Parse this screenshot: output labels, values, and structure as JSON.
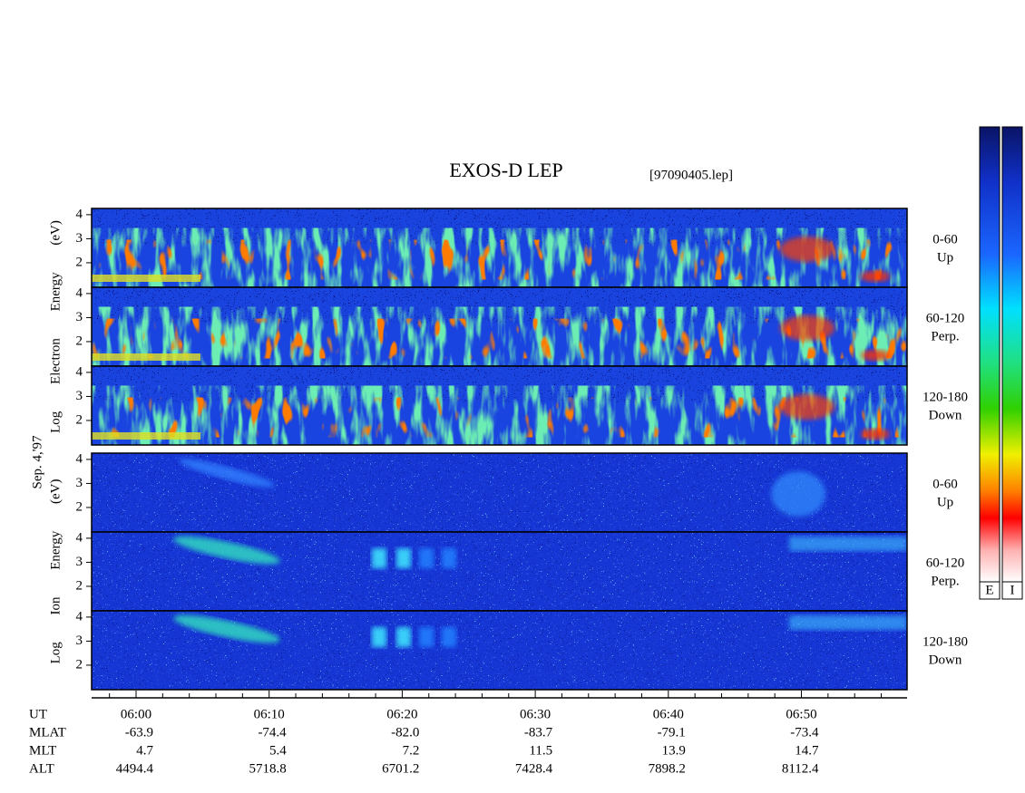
{
  "chart_data": {
    "type": "spectrogram",
    "title": "EXOS-D LEP",
    "file": "[97090405.lep]",
    "date_label": "Sep. 4,'97",
    "groups": [
      {
        "ylabel": "Log Electron Energy (eV)",
        "panels": [
          {
            "pitch": "0-60",
            "dir": "Up"
          },
          {
            "pitch": "60-120",
            "dir": "Perp."
          },
          {
            "pitch": "120-180",
            "dir": "Down"
          }
        ]
      },
      {
        "ylabel": "Log Ion Energy (eV)",
        "panels": [
          {
            "pitch": "0-60",
            "dir": "Up"
          },
          {
            "pitch": "60-120",
            "dir": "Perp."
          },
          {
            "pitch": "120-180",
            "dir": "Down"
          }
        ]
      }
    ],
    "ylim": [
      0.98,
      4.26
    ],
    "yticks": [
      2,
      3,
      4
    ],
    "xlabel": "UT",
    "xlim": [
      356.66,
      417.94
    ],
    "xticks": [
      {
        "value": 360,
        "label": "06:00"
      },
      {
        "value": 370,
        "label": "06:10"
      },
      {
        "value": 380,
        "label": "06:20"
      },
      {
        "value": 390,
        "label": "06:30"
      },
      {
        "value": 400,
        "label": "06:40"
      },
      {
        "value": 410,
        "label": "06:50"
      }
    ],
    "xminor_ticks": [
      358,
      362,
      364,
      366,
      368,
      372,
      374,
      376,
      378,
      382,
      384,
      386,
      388,
      392,
      394,
      396,
      398,
      402,
      404,
      406,
      408,
      412,
      414,
      416
    ],
    "ephemeris": [
      {
        "name": "MLAT",
        "values": [
          "-63.9",
          "-74.4",
          "-82.0",
          "-83.7",
          "-79.1",
          "-73.4"
        ]
      },
      {
        "name": "MLT",
        "values": [
          "4.7",
          "5.4",
          "7.2",
          "11.5",
          "13.9",
          "14.7"
        ]
      },
      {
        "name": "ALT",
        "values": [
          "4494.4",
          "5718.8",
          "6701.2",
          "7428.4",
          "7898.2",
          "8112.4"
        ]
      }
    ],
    "colorbars": [
      "E",
      "I"
    ]
  }
}
